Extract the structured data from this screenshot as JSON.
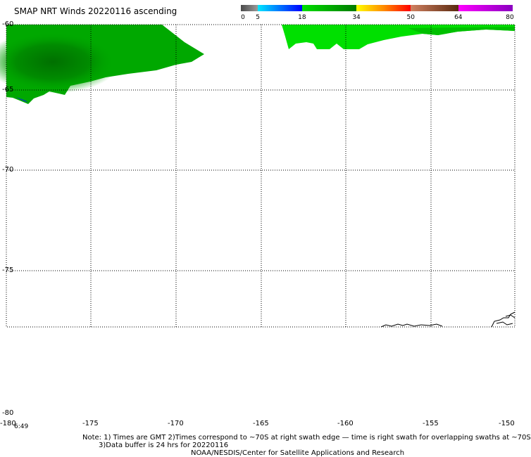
{
  "title": "SMAP NRT Winds 20220116 ascending",
  "colorbar": {
    "ticks": [
      "0",
      "5",
      "18",
      "34",
      "50",
      "64",
      "80"
    ],
    "segments": [
      {
        "from": 0,
        "to": 5,
        "colors": [
          "#4a4a4a",
          "#9a9a9a"
        ]
      },
      {
        "from": 5,
        "to": 18,
        "colors": [
          "#00e8ff",
          "#0000ff"
        ]
      },
      {
        "from": 18,
        "to": 34,
        "colors": [
          "#00e000",
          "#007a00"
        ]
      },
      {
        "from": 34,
        "to": 50,
        "colors": [
          "#ffff00",
          "#ff8c00",
          "#ff0000"
        ]
      },
      {
        "from": 50,
        "to": 64,
        "colors": [
          "#d08060",
          "#5a2a10"
        ]
      },
      {
        "from": 64,
        "to": 80,
        "colors": [
          "#ff00ff",
          "#8a00c0"
        ]
      }
    ]
  },
  "map": {
    "lat_labels": [
      "-60",
      "-65",
      "-70",
      "-75",
      "-80"
    ],
    "lon_labels": [
      "-180",
      "-175",
      "-170",
      "-165",
      "-160",
      "-155",
      "-150"
    ],
    "time_label": "6:49",
    "colors": {
      "wind_dark_green": "#008c00",
      "wind_green": "#00c000",
      "wind_bright_green": "#00e000",
      "wind_blue": "#0033cc",
      "grid": "#000000",
      "coastline": "#000000"
    }
  },
  "notes": {
    "line1": "Note: 1) Times are GMT 2)Times correspond to ~70S at right swath edge — time is right swath for overlapping swaths at ~70S",
    "line2": "3)Data buffer is 24 hrs for 20220116",
    "line3": "NOAA/NESDIS/Center for Satellite Applications and Research"
  }
}
